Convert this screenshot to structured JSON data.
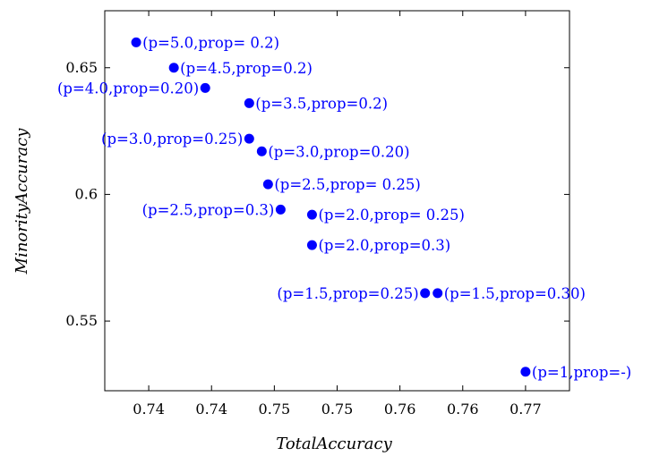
{
  "chart_data": {
    "type": "scatter",
    "xlabel": "TotalAccuracy",
    "ylabel": "MinorityAccuracy",
    "xlim": [
      0.7365,
      0.7735
    ],
    "ylim": [
      0.5225,
      0.6725
    ],
    "x_ticks": [
      0.74,
      0.745,
      0.75,
      0.755,
      0.76,
      0.765,
      0.77
    ],
    "x_tick_labels": [
      "0.74",
      "0.74",
      "0.75",
      "0.75",
      "0.76",
      "0.76",
      "0.77"
    ],
    "y_ticks": [
      0.55,
      0.6,
      0.65
    ],
    "y_tick_labels": [
      "0.55",
      "0.6",
      "0.65"
    ],
    "grid": false,
    "color": "#0000ff",
    "points": [
      {
        "x": 0.739,
        "y": 0.66,
        "label": "(p=5.0,prop= 0.2)",
        "anchor": "right"
      },
      {
        "x": 0.742,
        "y": 0.65,
        "label": "(p=4.5,prop=0.2)",
        "anchor": "right"
      },
      {
        "x": 0.7445,
        "y": 0.642,
        "label": "(p=4.0,prop=0.20)",
        "anchor": "left"
      },
      {
        "x": 0.748,
        "y": 0.636,
        "label": "(p=3.5,prop=0.2)",
        "anchor": "right"
      },
      {
        "x": 0.748,
        "y": 0.622,
        "label": "(p=3.0,prop=0.25)",
        "anchor": "left"
      },
      {
        "x": 0.749,
        "y": 0.617,
        "label": "(p=3.0,prop=0.20)",
        "anchor": "right"
      },
      {
        "x": 0.7495,
        "y": 0.604,
        "label": "(p=2.5,prop= 0.25)",
        "anchor": "right"
      },
      {
        "x": 0.7505,
        "y": 0.594,
        "label": "(p=2.5,prop=0.3)",
        "anchor": "left"
      },
      {
        "x": 0.753,
        "y": 0.592,
        "label": "(p=2.0,prop= 0.25)",
        "anchor": "right"
      },
      {
        "x": 0.753,
        "y": 0.58,
        "label": "(p=2.0,prop=0.3)",
        "anchor": "right"
      },
      {
        "x": 0.762,
        "y": 0.561,
        "label": "(p=1.5,prop=0.25)",
        "anchor": "left"
      },
      {
        "x": 0.763,
        "y": 0.561,
        "label": "(p=1.5,prop=0.30)",
        "anchor": "right"
      },
      {
        "x": 0.77,
        "y": 0.53,
        "label": "(p=1,prop=-)",
        "anchor": "right"
      }
    ]
  }
}
